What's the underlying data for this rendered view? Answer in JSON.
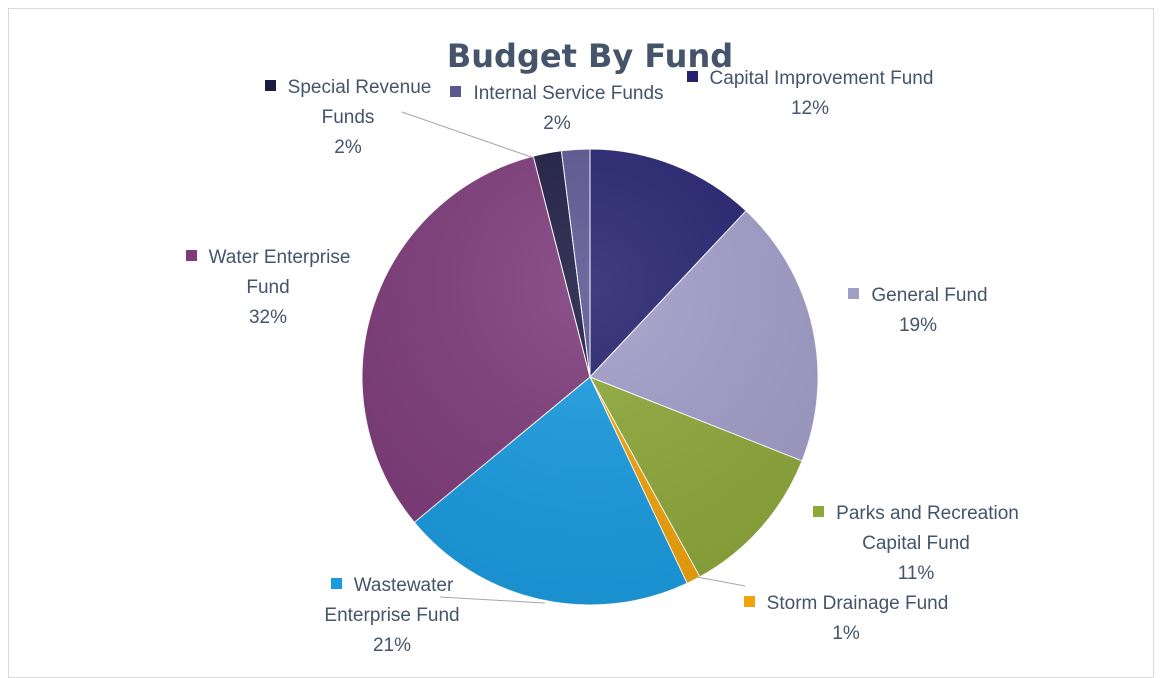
{
  "chart_data": {
    "type": "pie",
    "title": "Budget By Fund",
    "categories": [
      "Capital Improvement Fund",
      "General Fund",
      "Parks and Recreation Capital Fund",
      "Storm Drainage Fund",
      "Wastewater Enterprise Fund",
      "Water Enterprise Fund",
      "Special Revenue Funds",
      "Internal Service Funds"
    ],
    "values": [
      12,
      19,
      11,
      1,
      21,
      32,
      2,
      2
    ],
    "value_labels": [
      "12%",
      "19%",
      "11%",
      "1%",
      "21%",
      "32%",
      "2%",
      "2%"
    ],
    "colors": [
      "#25236f",
      "#a19dc9",
      "#8ea83a",
      "#f0a30a",
      "#1a9be0",
      "#7e3b7a",
      "#1c1b42",
      "#5b5591"
    ]
  }
}
